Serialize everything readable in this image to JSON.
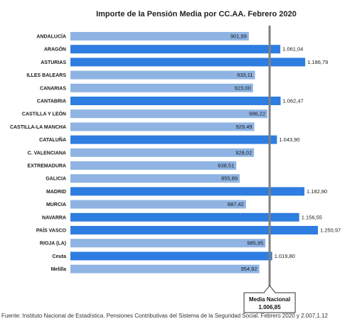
{
  "chart_data": {
    "type": "bar",
    "orientation": "horizontal",
    "title": "Importe de la Pensión Media  por CC.AA. Febrero 2020",
    "categories": [
      "ANDALUCÍA",
      "ARAGÓN",
      "ASTURIAS",
      "ILLES BALEARS",
      "CANARIAS",
      "CANTABRIA",
      "CASTILLA Y LEÓN",
      "CASTILLA-LA MANCHA",
      "CATALUÑA",
      "C. VALENCIANA",
      "EXTREMADURA",
      "GALICIA",
      "MADRID",
      "MURCIA",
      "NAVARRA",
      "PAÍS VASCO",
      "RIOJA (LA)",
      "Ceuta",
      "Melilla"
    ],
    "values": [
      901.99,
      1061.04,
      1186.79,
      933.11,
      923.0,
      1062.47,
      996.22,
      929.49,
      1043.9,
      928.02,
      838.51,
      855.89,
      1182.8,
      887.42,
      1156.55,
      1250.97,
      985.95,
      1019.8,
      954.92
    ],
    "value_labels": [
      "901,99",
      "1.061,04",
      "1.186,79",
      "933,11",
      "923,00",
      "1.062,47",
      "996,22",
      "929,49",
      "1.043,90",
      "928,02",
      "838,51",
      "855,89",
      "1.182,80",
      "887,42",
      "1.156,55",
      "1.250,97",
      "985,95",
      "1.019,80",
      "954,92"
    ],
    "highlighted": [
      false,
      true,
      true,
      false,
      false,
      true,
      false,
      false,
      true,
      false,
      false,
      false,
      true,
      false,
      true,
      true,
      false,
      true,
      false
    ],
    "reference_line": {
      "label": "Media Nacional",
      "value": 1006.85,
      "value_label": "1.006,85"
    },
    "colors": {
      "above_average": "#2e7de0",
      "below_average": "#8fb4e3",
      "reference_line": "#808080"
    },
    "xlim": [
      0,
      1250.97
    ],
    "grid": false,
    "legend": "none"
  },
  "footer": {
    "source_text": "Fuente: Instituto Nacional de Estadística. Pensiones Contributivas del Sistema de la Seguridad Social. Febrero 2020 y 2.007,1.12"
  }
}
